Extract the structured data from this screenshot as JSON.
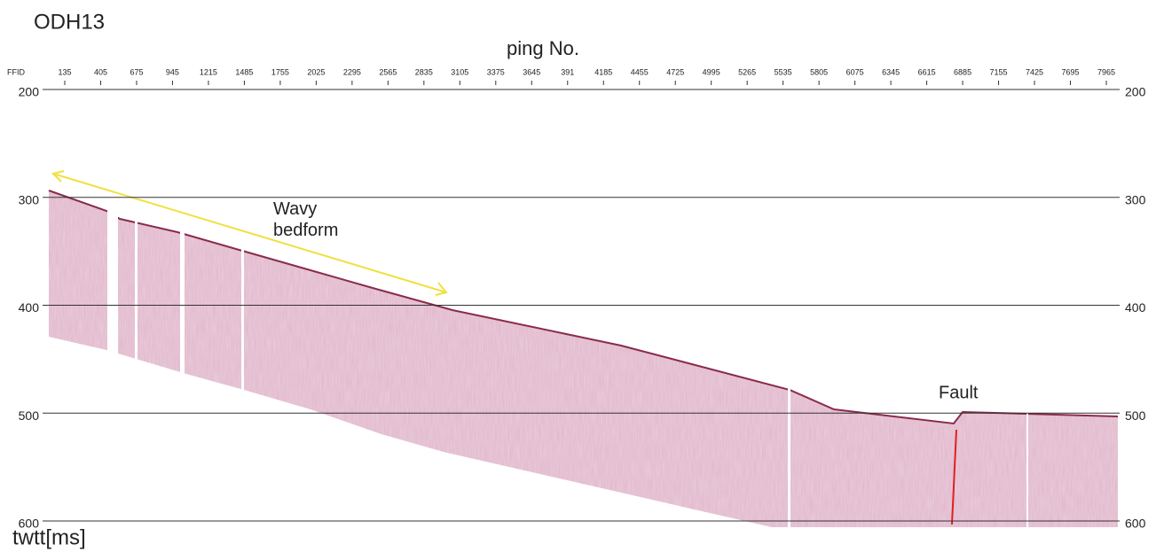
{
  "chart_data": {
    "type": "seismic-profile",
    "title": "ODH13",
    "x_label": "ping No.",
    "x_axis_name": "FFID",
    "y_label": "twtt[ms]",
    "categories": [
      "135",
      "405",
      "675",
      "945",
      "1215",
      "1485",
      "1755",
      "2025",
      "2295",
      "2565",
      "2835",
      "3105",
      "3375",
      "3645",
      "391",
      "4185",
      "4455",
      "4725",
      "4995",
      "5265",
      "5535",
      "5805",
      "6075",
      "6345",
      "6615",
      "6885",
      "7155",
      "7425",
      "7695",
      "7965"
    ],
    "ylim": [
      200,
      600
    ],
    "yticks": [
      200,
      300,
      400,
      500,
      600
    ],
    "grid": true,
    "annotations": [
      "Wavy\nbedform",
      "Fault"
    ]
  }
}
